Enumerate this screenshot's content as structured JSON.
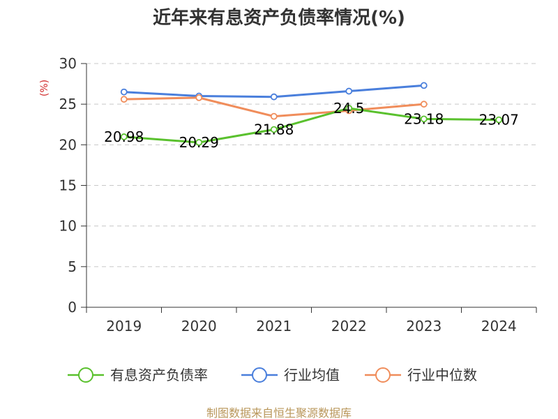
{
  "chart_data": {
    "type": "line",
    "title": "近年来有息资产负债率情况(%)",
    "ylabel": "(%)",
    "categories": [
      "2019",
      "2020",
      "2021",
      "2022",
      "2023",
      "2024"
    ],
    "ylim": [
      0,
      30
    ],
    "yticks": [
      0,
      5,
      10,
      15,
      20,
      25,
      30
    ],
    "grid": "horizontal-dashed",
    "legend_position": "bottom",
    "series": [
      {
        "name": "有息资产负债率",
        "color": "#5ac12e",
        "values": [
          20.98,
          20.29,
          21.88,
          24.5,
          23.18,
          23.07
        ],
        "labels": [
          "20.98",
          "20.29",
          "21.88",
          "24.5",
          "23.18",
          "23.07"
        ]
      },
      {
        "name": "行业均值",
        "color": "#4a7fdc",
        "values": [
          26.5,
          26.0,
          25.9,
          26.6,
          27.3,
          null
        ]
      },
      {
        "name": "行业中位数",
        "color": "#f08d5b",
        "values": [
          25.6,
          25.8,
          23.5,
          24.2,
          25.0,
          null
        ]
      }
    ],
    "source": "制图数据来自恒生聚源数据库"
  }
}
